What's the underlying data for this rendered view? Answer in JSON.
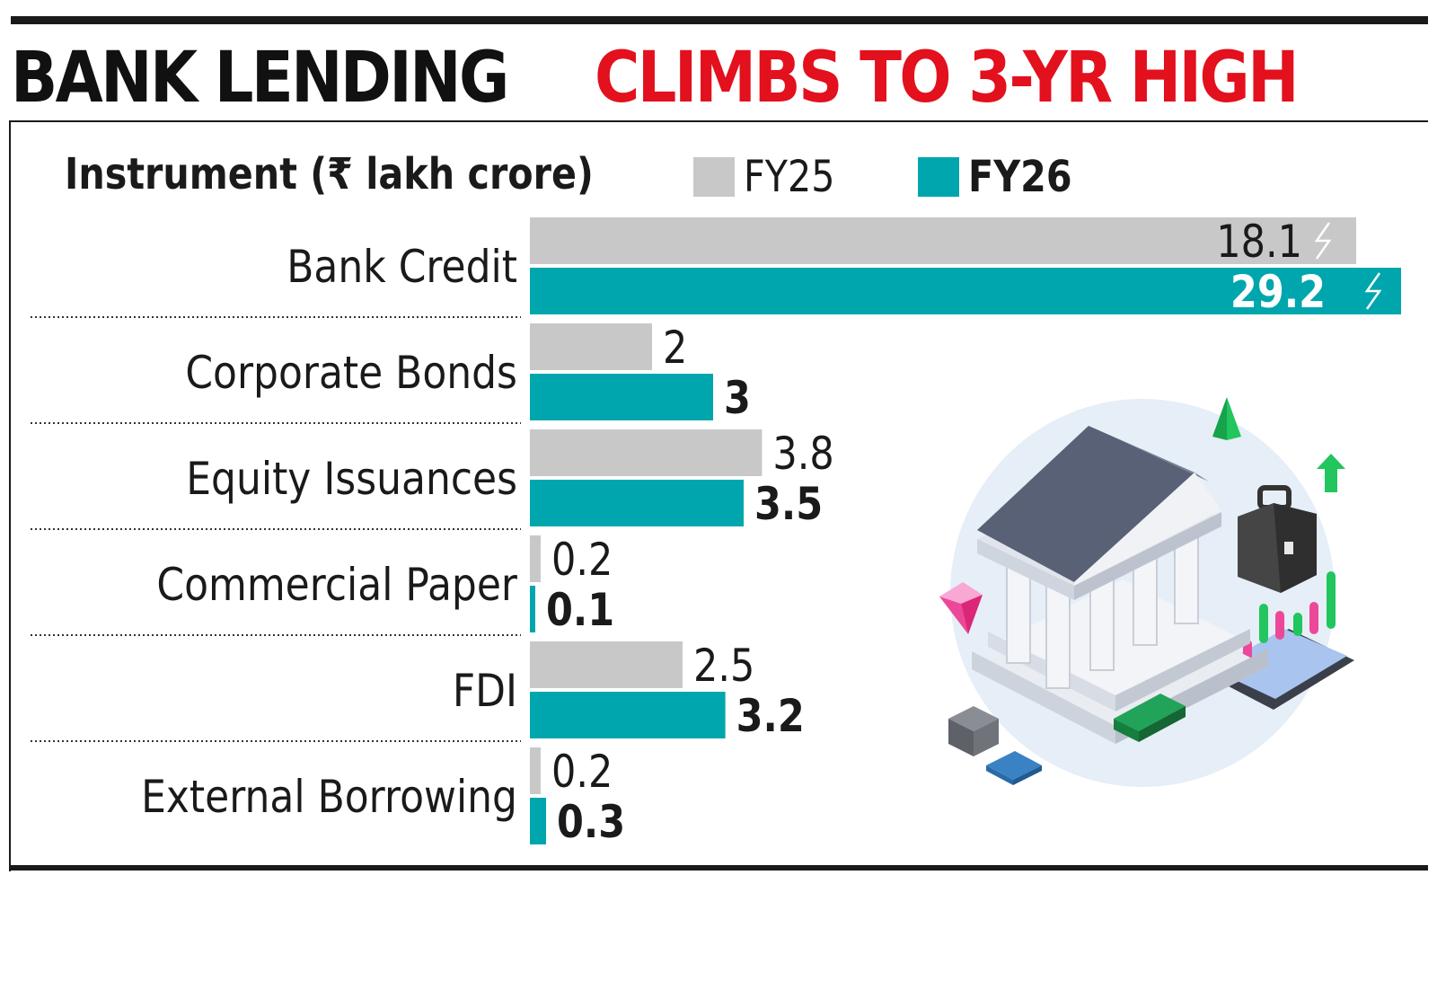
{
  "title": {
    "part1": "BANK LENDING",
    "part2": "CLIMBS TO 3-YR HIGH"
  },
  "colors": {
    "fy25": "#c8c8c8",
    "fy26": "#00a6ad",
    "title_accent": "#e3101d",
    "text": "#1a1a1a"
  },
  "chart_data": {
    "type": "bar",
    "orientation": "horizontal",
    "category_header": "Instrument (₹ lakh crore)",
    "categories": [
      "Bank Credit",
      "Corporate Bonds",
      "Equity Issuances",
      "Commercial Paper",
      "FDI",
      "External Borrowing"
    ],
    "series": [
      {
        "name": "FY25",
        "values": [
          18.1,
          2,
          3.8,
          0.2,
          2.5,
          0.2
        ]
      },
      {
        "name": "FY26",
        "values": [
          29.2,
          3,
          3.5,
          0.1,
          3.2,
          0.3
        ]
      }
    ],
    "value_labels": {
      "FY25": [
        "18.1",
        "2",
        "3.8",
        "0.2",
        "2.5",
        "0.2"
      ],
      "FY26": [
        "29.2",
        "3",
        "3.5",
        "0.1",
        "3.2",
        "0.3"
      ]
    },
    "axis_break_on": "Bank Credit",
    "legend_position": "top",
    "grid": false
  }
}
